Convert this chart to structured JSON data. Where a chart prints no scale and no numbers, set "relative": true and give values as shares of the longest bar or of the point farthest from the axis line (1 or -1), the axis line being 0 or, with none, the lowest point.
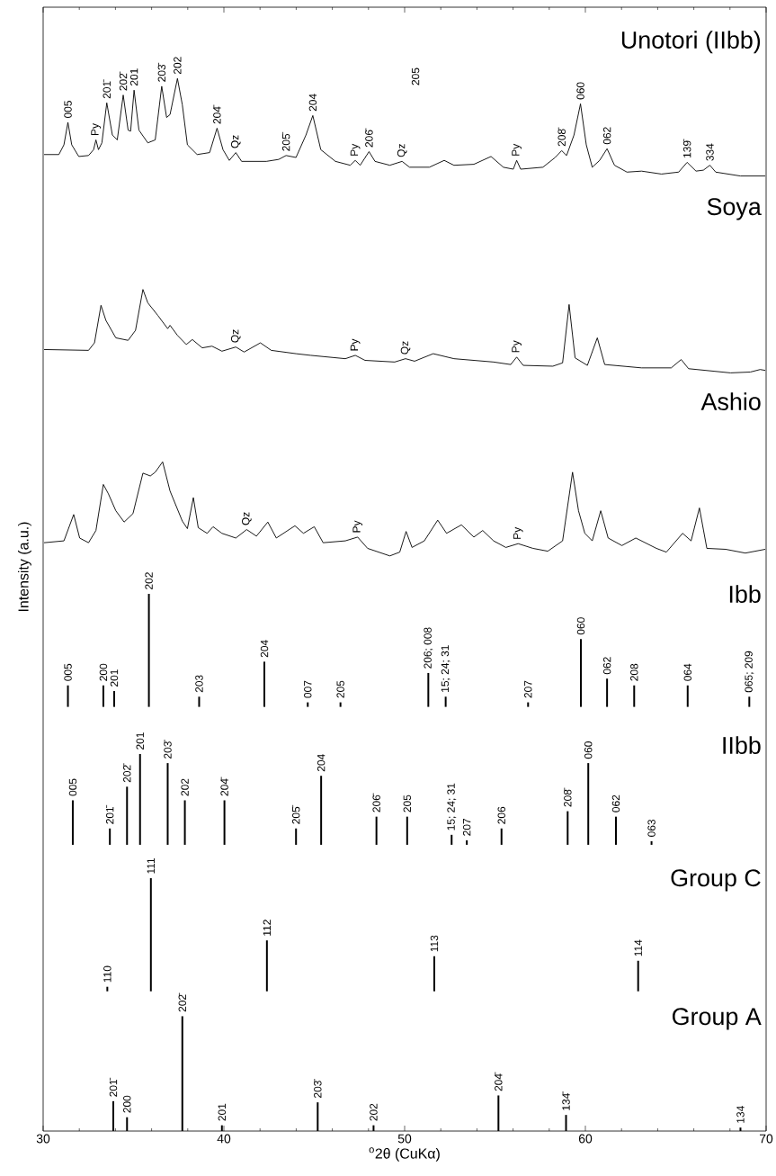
{
  "chart_data": [
    {
      "type": "line",
      "title": "Unotori (IIbb)",
      "relative": true,
      "xlim": [
        30,
        70
      ],
      "xticks": [
        30,
        40,
        50,
        60,
        70
      ],
      "tick_labels": false,
      "series": [
        {
          "color": "#000000",
          "x": [
            30.05,
            30.87,
            31.15,
            31.37,
            31.58,
            31.97,
            32.51,
            32.79,
            32.92,
            33.06,
            33.25,
            33.52,
            33.83,
            34.1,
            34.43,
            34.7,
            34.84,
            35.03,
            35.3,
            35.79,
            36.2,
            36.56,
            36.83,
            37.02,
            37.43,
            37.7,
            37.98,
            38.52,
            39.21,
            39.62,
            39.95,
            40.3,
            40.66,
            40.98,
            42.35,
            43.03,
            43.44,
            43.99,
            44.54,
            44.92,
            45.36,
            46.17,
            46.99,
            47.27,
            47.54,
            48.03,
            48.36,
            49.18,
            49.86,
            50.27,
            51.37,
            52.19,
            52.73,
            53.83,
            54.78,
            55.46,
            56.01,
            56.2,
            56.42,
            57.65,
            58.33,
            58.69,
            58.96,
            59.37,
            59.73,
            60.05,
            60.38,
            60.79,
            61.2,
            61.61,
            62.3,
            63.11,
            64.21,
            65.16,
            65.63,
            66.12,
            66.53,
            66.89,
            67.21,
            68.58,
            69.95
          ],
          "values": [
            0.22,
            0.22,
            0.32,
            0.55,
            0.32,
            0.2,
            0.21,
            0.27,
            0.37,
            0.27,
            0.34,
            0.75,
            0.42,
            0.37,
            0.83,
            0.47,
            0.46,
            0.88,
            0.47,
            0.34,
            0.37,
            0.92,
            0.6,
            0.63,
            1.0,
            0.73,
            0.32,
            0.22,
            0.24,
            0.49,
            0.27,
            0.16,
            0.24,
            0.15,
            0.15,
            0.17,
            0.21,
            0.19,
            0.42,
            0.62,
            0.27,
            0.15,
            0.11,
            0.16,
            0.11,
            0.25,
            0.15,
            0.11,
            0.15,
            0.09,
            0.09,
            0.16,
            0.11,
            0.12,
            0.2,
            0.09,
            0.07,
            0.16,
            0.07,
            0.09,
            0.19,
            0.26,
            0.21,
            0.42,
            0.74,
            0.32,
            0.09,
            0.16,
            0.28,
            0.11,
            0.04,
            0.05,
            0.02,
            0.04,
            0.14,
            0.05,
            0.06,
            0.11,
            0.04,
            0.0,
            0.0
          ]
        }
      ],
      "annotations": [
        {
          "text": "005",
          "x": 31.37,
          "y": 0.55
        },
        {
          "text": "Py",
          "x": 32.92,
          "y": 0.37
        },
        {
          "text": "201̄",
          "x": 33.52,
          "y": 0.75
        },
        {
          "text": "202̄",
          "x": 34.43,
          "y": 0.83
        },
        {
          "text": "201",
          "x": 35.03,
          "y": 0.88
        },
        {
          "text": "203̄",
          "x": 36.56,
          "y": 0.92
        },
        {
          "text": "202",
          "x": 37.43,
          "y": 1.0
        },
        {
          "text": "204̄",
          "x": 39.62,
          "y": 0.49
        },
        {
          "text": "Qz",
          "x": 40.66,
          "y": 0.24
        },
        {
          "text": "205̄",
          "x": 43.44,
          "y": 0.21
        },
        {
          "text": "204",
          "x": 44.92,
          "y": 0.62
        },
        {
          "text": "Py",
          "x": 47.27,
          "y": 0.16
        },
        {
          "text": "206̄",
          "x": 48.03,
          "y": 0.25
        },
        {
          "text": "Qz",
          "x": 49.86,
          "y": 0.15
        },
        "205",
        {
          "text": "Py",
          "x": 56.2,
          "y": 0.16
        },
        {
          "text": "208̄",
          "x": 58.69,
          "y": 0.26
        },
        {
          "text": "060",
          "x": 59.73,
          "y": 0.74
        },
        {
          "text": "062",
          "x": 61.2,
          "y": 0.28
        },
        {
          "text": "139̄",
          "x": 65.63,
          "y": 0.14
        },
        {
          "text": "334",
          "x": 66.89,
          "y": 0.11
        }
      ]
    },
    {
      "type": "line",
      "title": "Soya",
      "relative": true,
      "xlim": [
        30,
        70
      ],
      "xticks": [
        30,
        40,
        50,
        60,
        70
      ],
      "tick_labels": false,
      "series": [
        {
          "color": "#000000",
          "x": [
            30.05,
            32.51,
            32.84,
            33.2,
            33.47,
            34.02,
            34.7,
            35.11,
            35.52,
            35.79,
            36.34,
            36.89,
            37.02,
            37.43,
            37.92,
            38.25,
            38.8,
            39.34,
            39.89,
            40.66,
            41.12,
            42.02,
            42.62,
            43.99,
            44.81,
            46.72,
            47.27,
            47.81,
            49.45,
            50.05,
            50.55,
            51.58,
            52.73,
            54.92,
            55.87,
            56.2,
            56.56,
            58.2,
            58.74,
            59.1,
            59.43,
            60.11,
            60.66,
            61.07,
            63.11,
            64.75,
            65.3,
            65.71,
            68.03,
            69.13,
            69.67,
            69.95
          ],
          "values": [
            0.28,
            0.27,
            0.36,
            0.81,
            0.63,
            0.42,
            0.39,
            0.51,
            1.0,
            0.84,
            0.69,
            0.53,
            0.57,
            0.45,
            0.34,
            0.4,
            0.3,
            0.32,
            0.26,
            0.31,
            0.25,
            0.36,
            0.27,
            0.23,
            0.21,
            0.17,
            0.21,
            0.15,
            0.13,
            0.17,
            0.14,
            0.23,
            0.17,
            0.13,
            0.1,
            0.19,
            0.09,
            0.08,
            0.12,
            0.82,
            0.18,
            0.09,
            0.42,
            0.1,
            0.06,
            0.06,
            0.16,
            0.05,
            0.0,
            0.01,
            0.04,
            0.03
          ]
        }
      ],
      "annotations": [
        {
          "text": "Qz",
          "x": 40.66,
          "y": 0.31
        },
        {
          "text": "Py",
          "x": 47.27,
          "y": 0.21
        },
        {
          "text": "Qz",
          "x": 50.05,
          "y": 0.17
        },
        {
          "text": "Py",
          "x": 56.2,
          "y": 0.19
        }
      ]
    },
    {
      "type": "line",
      "title": "Ashio",
      "relative": true,
      "xlim": [
        30,
        70
      ],
      "xticks": [
        30,
        40,
        50,
        60,
        70
      ],
      "tick_labels": false,
      "series": [
        {
          "color": "#000000",
          "x": [
            30.05,
            31.15,
            31.69,
            32.02,
            32.51,
            32.92,
            33.33,
            33.61,
            34.02,
            34.48,
            34.97,
            35.52,
            35.93,
            36.2,
            36.61,
            37.02,
            37.7,
            37.98,
            38.31,
            38.58,
            39.07,
            39.4,
            39.89,
            40.66,
            41.26,
            41.8,
            42.43,
            42.9,
            43.93,
            44.4,
            45.0,
            45.49,
            46.72,
            47.4,
            47.95,
            49.18,
            49.73,
            50.08,
            50.41,
            51.09,
            51.83,
            52.32,
            53.14,
            53.83,
            54.32,
            54.92,
            55.6,
            56.28,
            57.1,
            57.92,
            58.74,
            59.29,
            59.62,
            59.97,
            60.38,
            60.85,
            61.26,
            62.02,
            62.79,
            63.93,
            64.48,
            65.38,
            65.85,
            66.31,
            66.72,
            67.76,
            68.85,
            69.95
          ],
          "values": [
            0.14,
            0.16,
            0.44,
            0.19,
            0.14,
            0.27,
            0.76,
            0.66,
            0.48,
            0.36,
            0.45,
            0.88,
            0.85,
            0.89,
            1.0,
            0.69,
            0.37,
            0.29,
            0.62,
            0.3,
            0.24,
            0.31,
            0.24,
            0.19,
            0.28,
            0.21,
            0.36,
            0.19,
            0.32,
            0.24,
            0.31,
            0.14,
            0.16,
            0.2,
            0.08,
            0.0,
            0.04,
            0.26,
            0.09,
            0.16,
            0.38,
            0.24,
            0.33,
            0.2,
            0.27,
            0.16,
            0.09,
            0.13,
            0.08,
            0.05,
            0.16,
            0.89,
            0.48,
            0.24,
            0.16,
            0.48,
            0.19,
            0.11,
            0.19,
            0.08,
            0.04,
            0.24,
            0.16,
            0.51,
            0.08,
            0.07,
            0.03,
            0.07
          ]
        }
      ],
      "annotations": [
        {
          "text": "Qz",
          "x": 41.26,
          "y": 0.28
        },
        {
          "text": "Py",
          "x": 47.4,
          "y": 0.2
        },
        {
          "text": "Py",
          "x": 56.28,
          "y": 0.13
        }
      ]
    },
    {
      "type": "bar",
      "title": "Ibb",
      "ylabel": "Intensity (a.u.)",
      "relative": true,
      "xlim": [
        30,
        70
      ],
      "xticks": [
        30,
        40,
        50,
        60,
        70
      ],
      "tick_labels": false,
      "series": [
        {
          "color": "#000000",
          "x": [
            31.37,
            33.33,
            33.93,
            35.85,
            38.63,
            42.24,
            44.64,
            46.45,
            51.31,
            52.27,
            56.83,
            59.75,
            61.2,
            62.7,
            65.66,
            69.07
          ],
          "values": [
            0.19,
            0.19,
            0.14,
            1.0,
            0.09,
            0.4,
            0.04,
            0.04,
            0.3,
            0.09,
            0.04,
            0.6,
            0.25,
            0.19,
            0.19,
            0.09
          ]
        }
      ],
      "annotations": [
        {
          "text": "005",
          "x": 31.37,
          "y": 0.19
        },
        {
          "text": "200",
          "x": 33.33,
          "y": 0.19
        },
        {
          "text": "201",
          "x": 33.93,
          "y": 0.14
        },
        {
          "text": "202",
          "x": 35.85,
          "y": 1.0
        },
        {
          "text": "203",
          "x": 38.63,
          "y": 0.09
        },
        {
          "text": "204",
          "x": 42.24,
          "y": 0.4
        },
        {
          "text": "007",
          "x": 44.64,
          "y": 0.04
        },
        {
          "text": "205",
          "x": 46.45,
          "y": 0.04
        },
        {
          "text": "206; 008",
          "x": 51.31,
          "y": 0.3
        },
        {
          "text": "15; 24; 31",
          "x": 52.27,
          "y": 0.09
        },
        {
          "text": "207",
          "x": 56.83,
          "y": 0.04
        },
        {
          "text": "060",
          "x": 59.75,
          "y": 0.6
        },
        {
          "text": "062",
          "x": 61.2,
          "y": 0.25
        },
        {
          "text": "208",
          "x": 62.7,
          "y": 0.19
        },
        {
          "text": "064",
          "x": 65.66,
          "y": 0.19
        },
        {
          "text": "065; 209",
          "x": 69.07,
          "y": 0.09
        }
      ]
    },
    {
      "type": "bar",
      "title": "IIbb",
      "relative": true,
      "xlim": [
        30,
        70
      ],
      "xticks": [
        30,
        40,
        50,
        60,
        70
      ],
      "tick_labels": false,
      "series": [
        {
          "color": "#000000",
          "x": [
            31.64,
            33.69,
            34.64,
            35.36,
            36.89,
            37.84,
            40.03,
            43.99,
            45.38,
            48.44,
            50.14,
            52.6,
            53.44,
            55.36,
            59.02,
            60.16,
            61.69,
            63.66
          ],
          "values": [
            0.49,
            0.18,
            0.64,
            1.0,
            0.9,
            0.49,
            0.49,
            0.18,
            0.76,
            0.31,
            0.31,
            0.11,
            0.05,
            0.18,
            0.37,
            0.9,
            0.31,
            0.04
          ]
        }
      ],
      "annotations": [
        {
          "text": "005",
          "x": 31.64,
          "y": 0.49
        },
        {
          "text": "201̄",
          "x": 33.69,
          "y": 0.18
        },
        {
          "text": "202̄",
          "x": 34.64,
          "y": 0.64
        },
        {
          "text": "201",
          "x": 35.36,
          "y": 1.0
        },
        {
          "text": "203̄",
          "x": 36.89,
          "y": 0.9
        },
        {
          "text": "202",
          "x": 37.84,
          "y": 0.49
        },
        {
          "text": "204̄",
          "x": 40.03,
          "y": 0.49
        },
        {
          "text": "205̄",
          "x": 43.99,
          "y": 0.18
        },
        {
          "text": "204",
          "x": 45.38,
          "y": 0.76
        },
        {
          "text": "206̄",
          "x": 48.44,
          "y": 0.31
        },
        {
          "text": "205",
          "x": 50.14,
          "y": 0.31
        },
        {
          "text": "15; 24; 31",
          "x": 52.6,
          "y": 0.11
        },
        {
          "text": "207",
          "x": 53.44,
          "y": 0.05
        },
        {
          "text": "206",
          "x": 55.36,
          "y": 0.18
        },
        {
          "text": "208̄",
          "x": 59.02,
          "y": 0.37
        },
        {
          "text": "060",
          "x": 60.16,
          "y": 0.9
        },
        {
          "text": "062",
          "x": 61.69,
          "y": 0.31
        },
        {
          "text": "063",
          "x": 63.66,
          "y": 0.04
        }
      ]
    },
    {
      "type": "bar",
      "title": "Group C",
      "relative": true,
      "xlim": [
        30,
        70
      ],
      "xticks": [
        30,
        40,
        50,
        60,
        70
      ],
      "tick_labels": false,
      "series": [
        {
          "color": "#000000",
          "x": [
            33.55,
            35.96,
            42.38,
            51.64,
            62.92
          ],
          "values": [
            0.04,
            1.0,
            0.45,
            0.31,
            0.27
          ]
        }
      ],
      "annotations": [
        {
          "text": "110",
          "x": 33.55,
          "y": 0.04
        },
        {
          "text": "111",
          "x": 35.96,
          "y": 1.0
        },
        {
          "text": "112",
          "x": 42.38,
          "y": 0.45
        },
        {
          "text": "113",
          "x": 51.64,
          "y": 0.31
        },
        {
          "text": "114",
          "x": 62.92,
          "y": 0.27
        }
      ]
    },
    {
      "type": "bar",
      "title": "Group A",
      "xlabel": "$^{o}$2θ (CuKα)",
      "relative": true,
      "xlim": [
        30,
        70
      ],
      "xticks": [
        30,
        40,
        50,
        60,
        70
      ],
      "tick_labels": "x",
      "series": [
        {
          "color": "#000000",
          "x": [
            33.88,
            34.64,
            37.7,
            39.89,
            45.19,
            48.28,
            55.19,
            58.93,
            68.58
          ],
          "values": [
            0.26,
            0.12,
            1.0,
            0.05,
            0.25,
            0.05,
            0.31,
            0.14,
            0.03
          ]
        }
      ],
      "annotations": [
        {
          "text": "201̄",
          "x": 33.88,
          "y": 0.26
        },
        {
          "text": "200",
          "x": 34.64,
          "y": 0.12
        },
        {
          "text": "202̄",
          "x": 37.7,
          "y": 1.0
        },
        {
          "text": "201",
          "x": 39.89,
          "y": 0.05
        },
        {
          "text": "203̄",
          "x": 45.19,
          "y": 0.25
        },
        {
          "text": "202",
          "x": 48.28,
          "y": 0.05
        },
        {
          "text": "204̄",
          "x": 55.19,
          "y": 0.31
        },
        {
          "text": "134̄",
          "x": 58.93,
          "y": 0.14
        },
        {
          "text": "134",
          "x": 68.58,
          "y": 0.03
        }
      ]
    }
  ]
}
